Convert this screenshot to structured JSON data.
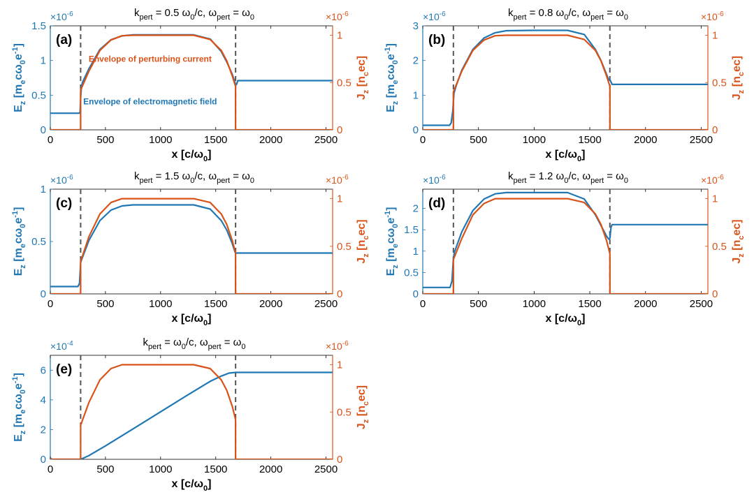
{
  "colors": {
    "field": "#1f77b4",
    "current": "#d95319",
    "dashed": "#555555",
    "axis": "#000000"
  },
  "chart_data": [
    {
      "type": "line",
      "panel_label": "(a)",
      "title_parts": {
        "k_sub": "pert",
        "k_val": " = 0.5 ",
        "w": "ω",
        "w_sub": "0",
        "k_unit": "/c, ",
        "w2": "ω",
        "w2_sub": "pert",
        "eq": " = ",
        "w3": "ω",
        "w3_sub": "0"
      },
      "xlabel": "x [c/ω0]",
      "ylabel_left": "Ez [me c ω0 e-1]",
      "ylabel_right": "Jz [nc ec]",
      "xlim": [
        0,
        2560
      ],
      "xticks": [
        0,
        500,
        1000,
        1500,
        2000,
        2500
      ],
      "left": {
        "ylim": [
          0,
          1.5
        ],
        "ticks": [
          0,
          0.5,
          1,
          1.5
        ],
        "tick_labels": [
          "0",
          "0.5",
          "1",
          "1.5"
        ],
        "exponent": "×10-6"
      },
      "right": {
        "ylim": [
          0,
          1.1
        ],
        "ticks": [
          0,
          0.5,
          1
        ],
        "tick_labels": [
          "0",
          "0.5",
          "1"
        ],
        "exponent": "×10-6"
      },
      "dashed_x": [
        275,
        1680
      ],
      "series": [
        {
          "name": "Envelope of electromagnetic field",
          "axis": "left",
          "x": [
            0,
            265,
            270,
            275,
            280,
            290,
            350,
            450,
            550,
            650,
            750,
            1000,
            1300,
            1450,
            1550,
            1600,
            1650,
            1675,
            1680,
            1690,
            1700,
            2560
          ],
          "y": [
            0.24,
            0.24,
            0.26,
            0.45,
            0.58,
            0.68,
            0.88,
            1.16,
            1.3,
            1.355,
            1.37,
            1.37,
            1.37,
            1.31,
            1.13,
            0.98,
            0.8,
            0.68,
            0.64,
            0.66,
            0.71,
            0.71
          ]
        },
        {
          "name": "Envelope of perturbing current",
          "axis": "right",
          "x": [
            0,
            275,
            275,
            350,
            450,
            550,
            650,
            750,
            1000,
            1300,
            1450,
            1550,
            1600,
            1650,
            1680,
            1680,
            2560
          ],
          "y": [
            0,
            0,
            0.42,
            0.62,
            0.84,
            0.95,
            0.995,
            1.0,
            1.0,
            1.0,
            0.955,
            0.84,
            0.73,
            0.57,
            0.46,
            0,
            0
          ]
        }
      ],
      "annotations": [
        {
          "text": "Envelope of perturbing current",
          "color": "current",
          "x": 905,
          "y": 0.75
        },
        {
          "text": "Envelope of electromagnetic field",
          "color": "field",
          "x": 905,
          "y": 0.3
        }
      ]
    },
    {
      "type": "line",
      "panel_label": "(b)",
      "title_parts": {
        "k_sub": "pert",
        "k_val": " = 0.8 ",
        "w": "ω",
        "w_sub": "0",
        "k_unit": "/c, ",
        "w2": "ω",
        "w2_sub": "pert",
        "eq": " = ",
        "w3": "ω",
        "w3_sub": "0"
      },
      "xlabel": "x [c/ω0]",
      "ylabel_left": "Ez [me c ω0 e-1]",
      "ylabel_right": "Jz [nc ec]",
      "xlim": [
        0,
        2560
      ],
      "xticks": [
        0,
        500,
        1000,
        1500,
        2000,
        2500
      ],
      "left": {
        "ylim": [
          0,
          3
        ],
        "ticks": [
          0,
          1,
          2,
          3
        ],
        "tick_labels": [
          "0",
          "1",
          "2",
          "3"
        ],
        "exponent": "×10-6"
      },
      "right": {
        "ylim": [
          0,
          1.1
        ],
        "ticks": [
          0,
          0.5,
          1
        ],
        "tick_labels": [
          "0",
          "0.5",
          "1"
        ],
        "exponent": "×10-6"
      },
      "dashed_x": [
        275,
        1680
      ],
      "series": [
        {
          "name": "",
          "axis": "left",
          "x": [
            0,
            240,
            255,
            270,
            280,
            300,
            350,
            450,
            550,
            650,
            750,
            1000,
            1300,
            1450,
            1550,
            1600,
            1650,
            1670,
            1680,
            1690,
            1700,
            2560
          ],
          "y": [
            0.13,
            0.13,
            0.2,
            0.55,
            1.05,
            1.27,
            1.72,
            2.32,
            2.65,
            2.8,
            2.86,
            2.87,
            2.87,
            2.75,
            2.32,
            2.0,
            1.6,
            1.43,
            1.45,
            1.38,
            1.31,
            1.31
          ]
        },
        {
          "name": "",
          "axis": "right",
          "x": [
            0,
            275,
            275,
            350,
            450,
            550,
            650,
            750,
            1000,
            1300,
            1450,
            1550,
            1600,
            1650,
            1680,
            1680,
            2560
          ],
          "y": [
            0,
            0,
            0.4,
            0.62,
            0.84,
            0.95,
            0.995,
            1.0,
            1.0,
            1.0,
            0.955,
            0.84,
            0.73,
            0.57,
            0.46,
            0,
            0
          ]
        }
      ],
      "annotations": []
    },
    {
      "type": "line",
      "panel_label": "(c)",
      "title_parts": {
        "k_sub": "pert",
        "k_val": " = 1.5 ",
        "w": "ω",
        "w_sub": "0",
        "k_unit": "/c, ",
        "w2": "ω",
        "w2_sub": "pert",
        "eq": " = ",
        "w3": "ω",
        "w3_sub": "0"
      },
      "xlabel": "x [c/ω0]",
      "ylabel_left": "Ez [me c ω0 e-1]",
      "ylabel_right": "Jz [nc ec]",
      "xlim": [
        0,
        2560
      ],
      "xticks": [
        0,
        500,
        1000,
        1500,
        2000,
        2500
      ],
      "left": {
        "ylim": [
          0,
          1
        ],
        "ticks": [
          0,
          0.5,
          1
        ],
        "tick_labels": [
          "0",
          "0.5",
          "1"
        ],
        "exponent": "×10-6"
      },
      "right": {
        "ylim": [
          0,
          1.1
        ],
        "ticks": [
          0,
          0.5,
          1
        ],
        "tick_labels": [
          "0",
          "0.5",
          "1"
        ],
        "exponent": "×10-6"
      },
      "dashed_x": [
        275,
        1680
      ],
      "series": [
        {
          "name": "",
          "axis": "left",
          "x": [
            0,
            250,
            265,
            275,
            285,
            350,
            450,
            550,
            650,
            750,
            1000,
            1300,
            1450,
            1550,
            1600,
            1650,
            1675,
            1680,
            1690,
            2560
          ],
          "y": [
            0.07,
            0.07,
            0.1,
            0.3,
            0.33,
            0.51,
            0.7,
            0.8,
            0.84,
            0.85,
            0.85,
            0.85,
            0.81,
            0.7,
            0.61,
            0.48,
            0.4,
            0.39,
            0.39,
            0.39
          ]
        },
        {
          "name": "",
          "axis": "right",
          "x": [
            0,
            275,
            275,
            350,
            450,
            550,
            650,
            750,
            1000,
            1300,
            1450,
            1550,
            1600,
            1650,
            1680,
            1680,
            2560
          ],
          "y": [
            0,
            0,
            0.34,
            0.6,
            0.84,
            0.96,
            1.0,
            1.0,
            1.0,
            1.0,
            0.96,
            0.84,
            0.73,
            0.56,
            0.43,
            0,
            0
          ]
        }
      ],
      "annotations": []
    },
    {
      "type": "line",
      "panel_label": "(d)",
      "title_parts": {
        "k_sub": "pert",
        "k_val": " = 1.2 ",
        "w": "ω",
        "w_sub": "0",
        "k_unit": "/c, ",
        "w2": "ω",
        "w2_sub": "pert",
        "eq": " = ",
        "w3": "ω",
        "w3_sub": "0"
      },
      "xlabel": "x [c/ω0]",
      "ylabel_left": "Ez [me c ω0 e-1]",
      "ylabel_right": "Jz [nc ec]",
      "xlim": [
        0,
        2560
      ],
      "xticks": [
        0,
        500,
        1000,
        1500,
        2000,
        2500
      ],
      "left": {
        "ylim": [
          0,
          2.45
        ],
        "ticks": [
          0,
          0.5,
          1,
          1.5,
          2
        ],
        "tick_labels": [
          "0",
          "0.5",
          "1",
          "1.5",
          "2"
        ],
        "exponent": "×10-6"
      },
      "right": {
        "ylim": [
          0,
          1.1
        ],
        "ticks": [
          0,
          0.5,
          1
        ],
        "tick_labels": [
          "0",
          "0.5",
          "1"
        ],
        "exponent": "×10-6"
      },
      "dashed_x": [
        275,
        1680
      ],
      "series": [
        {
          "name": "",
          "axis": "left",
          "x": [
            0,
            245,
            262,
            275,
            285,
            350,
            450,
            550,
            650,
            750,
            1000,
            1300,
            1450,
            1550,
            1600,
            1650,
            1670,
            1680,
            1690,
            1700,
            2560
          ],
          "y": [
            0.15,
            0.15,
            0.3,
            0.83,
            0.98,
            1.45,
            1.95,
            2.22,
            2.34,
            2.37,
            2.37,
            2.37,
            2.22,
            1.85,
            1.6,
            1.35,
            1.28,
            1.3,
            1.55,
            1.62,
            1.62
          ]
        },
        {
          "name": "",
          "axis": "right",
          "x": [
            0,
            275,
            275,
            350,
            450,
            550,
            650,
            750,
            1000,
            1300,
            1450,
            1550,
            1600,
            1650,
            1680,
            1680,
            2560
          ],
          "y": [
            0,
            0,
            0.36,
            0.58,
            0.83,
            0.95,
            1.0,
            1.0,
            1.0,
            1.0,
            0.96,
            0.84,
            0.73,
            0.56,
            0.42,
            0,
            0
          ]
        }
      ],
      "annotations": []
    },
    {
      "type": "line",
      "panel_label": "(e)",
      "title_parts": {
        "k_sub": "pert",
        "k_val": " = ",
        "w": "ω",
        "w_sub": "0",
        "k_unit": "/c, ",
        "w2": "ω",
        "w2_sub": "pert",
        "eq": " = ",
        "w3": "ω",
        "w3_sub": "0"
      },
      "xlabel": "x [c/ω0]",
      "ylabel_left": "Ez [me c ω0 e-1]",
      "ylabel_right": "Jz [nc ec]",
      "xlim": [
        0,
        2560
      ],
      "xticks": [
        0,
        500,
        1000,
        1500,
        2000,
        2500
      ],
      "left": {
        "ylim": [
          0,
          7
        ],
        "ticks": [
          0,
          2,
          4,
          6
        ],
        "tick_labels": [
          "0",
          "2",
          "4",
          "6"
        ],
        "exponent": "×10-4"
      },
      "right": {
        "ylim": [
          0,
          1.1
        ],
        "ticks": [
          0,
          0.5,
          1
        ],
        "tick_labels": [
          "0",
          "0.5",
          "1"
        ],
        "exponent": "×10-6"
      },
      "dashed_x": [
        275,
        1680
      ],
      "series": [
        {
          "name": "",
          "axis": "left",
          "x": [
            0,
            5,
            15,
            275,
            350,
            500,
            750,
            1000,
            1250,
            1450,
            1550,
            1620,
            1680,
            1700,
            2560
          ],
          "y": [
            0.1,
            0.05,
            0,
            0,
            0.25,
            0.9,
            2.05,
            3.2,
            4.35,
            5.25,
            5.6,
            5.8,
            5.85,
            5.85,
            5.85
          ]
        },
        {
          "name": "",
          "axis": "right",
          "x": [
            0,
            275,
            275,
            350,
            450,
            550,
            650,
            750,
            1000,
            1300,
            1450,
            1550,
            1600,
            1650,
            1680,
            1680,
            2560
          ],
          "y": [
            0,
            0,
            0.36,
            0.6,
            0.84,
            0.96,
            1.0,
            1.0,
            1.0,
            1.0,
            0.96,
            0.84,
            0.73,
            0.56,
            0.42,
            0,
            0
          ]
        }
      ],
      "annotations": []
    }
  ]
}
